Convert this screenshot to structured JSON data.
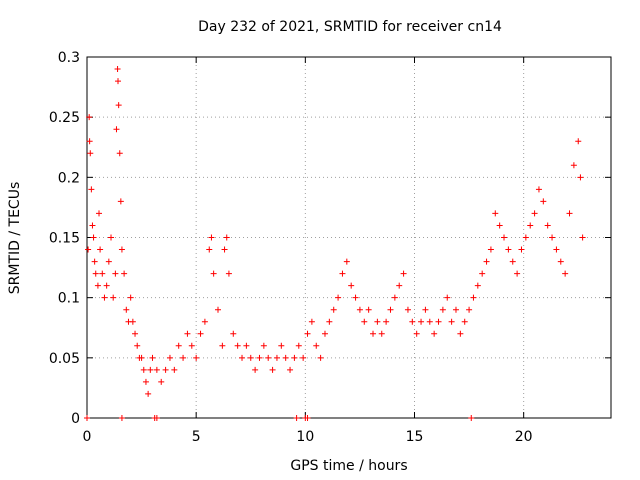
{
  "chart_data": {
    "type": "scatter",
    "title": "Day 232 of 2021, SRMTID for receiver cn14",
    "xlabel": "GPS time / hours",
    "ylabel": "SRMTID / TECUs",
    "xlim": [
      0,
      24
    ],
    "ylim": [
      0,
      0.3
    ],
    "xticks": [
      0,
      5,
      10,
      15,
      20
    ],
    "xtick_labels": [
      "0",
      "5",
      "10",
      "15",
      "20"
    ],
    "yticks": [
      0,
      0.05,
      0.1,
      0.15,
      0.2,
      0.25,
      0.3
    ],
    "ytick_labels": [
      "0",
      "0.05",
      "0.1",
      "0.15",
      "0.2",
      "0.25",
      "0.3"
    ],
    "grid": true,
    "marker": "+",
    "color": "#ff0000",
    "series": [
      {
        "name": "SRMTID",
        "points": [
          [
            0.05,
            0.14
          ],
          [
            0.1,
            0.25
          ],
          [
            0.12,
            0.23
          ],
          [
            0.15,
            0.22
          ],
          [
            0.2,
            0.19
          ],
          [
            0.25,
            0.16
          ],
          [
            0.3,
            0.15
          ],
          [
            0.35,
            0.13
          ],
          [
            0.4,
            0.12
          ],
          [
            0.5,
            0.11
          ],
          [
            0.55,
            0.17
          ],
          [
            0.6,
            0.14
          ],
          [
            0.7,
            0.12
          ],
          [
            0.8,
            0.1
          ],
          [
            0.9,
            0.11
          ],
          [
            1.0,
            0.13
          ],
          [
            1.1,
            0.15
          ],
          [
            1.2,
            0.1
          ],
          [
            1.3,
            0.12
          ],
          [
            1.35,
            0.24
          ],
          [
            1.4,
            0.29
          ],
          [
            1.42,
            0.28
          ],
          [
            1.45,
            0.26
          ],
          [
            1.5,
            0.22
          ],
          [
            1.55,
            0.18
          ],
          [
            1.6,
            0.14
          ],
          [
            1.7,
            0.12
          ],
          [
            1.8,
            0.09
          ],
          [
            1.9,
            0.08
          ],
          [
            2.0,
            0.1
          ],
          [
            2.1,
            0.08
          ],
          [
            2.2,
            0.07
          ],
          [
            2.3,
            0.06
          ],
          [
            2.4,
            0.05
          ],
          [
            2.5,
            0.05
          ],
          [
            2.6,
            0.04
          ],
          [
            2.7,
            0.03
          ],
          [
            2.8,
            0.02
          ],
          [
            2.9,
            0.04
          ],
          [
            3.0,
            0.05
          ],
          [
            3.2,
            0.04
          ],
          [
            3.4,
            0.03
          ],
          [
            3.6,
            0.04
          ],
          [
            3.8,
            0.05
          ],
          [
            4.0,
            0.04
          ],
          [
            4.2,
            0.06
          ],
          [
            4.4,
            0.05
          ],
          [
            4.6,
            0.07
          ],
          [
            4.8,
            0.06
          ],
          [
            5.0,
            0.05
          ],
          [
            5.2,
            0.07
          ],
          [
            5.4,
            0.08
          ],
          [
            5.6,
            0.14
          ],
          [
            5.7,
            0.15
          ],
          [
            5.8,
            0.12
          ],
          [
            6.0,
            0.09
          ],
          [
            6.2,
            0.06
          ],
          [
            6.3,
            0.14
          ],
          [
            6.4,
            0.15
          ],
          [
            6.5,
            0.12
          ],
          [
            6.7,
            0.07
          ],
          [
            6.9,
            0.06
          ],
          [
            7.1,
            0.05
          ],
          [
            7.3,
            0.06
          ],
          [
            7.5,
            0.05
          ],
          [
            7.7,
            0.04
          ],
          [
            7.9,
            0.05
          ],
          [
            8.1,
            0.06
          ],
          [
            8.3,
            0.05
          ],
          [
            8.5,
            0.04
          ],
          [
            8.7,
            0.05
          ],
          [
            8.9,
            0.06
          ],
          [
            9.1,
            0.05
          ],
          [
            9.3,
            0.04
          ],
          [
            9.5,
            0.05
          ],
          [
            9.7,
            0.06
          ],
          [
            9.9,
            0.05
          ],
          [
            10.1,
            0.07
          ],
          [
            10.3,
            0.08
          ],
          [
            10.5,
            0.06
          ],
          [
            10.7,
            0.05
          ],
          [
            10.9,
            0.07
          ],
          [
            11.1,
            0.08
          ],
          [
            11.3,
            0.09
          ],
          [
            11.5,
            0.1
          ],
          [
            11.7,
            0.12
          ],
          [
            11.9,
            0.13
          ],
          [
            12.1,
            0.11
          ],
          [
            12.3,
            0.1
          ],
          [
            12.5,
            0.09
          ],
          [
            12.7,
            0.08
          ],
          [
            12.9,
            0.09
          ],
          [
            13.1,
            0.07
          ],
          [
            13.3,
            0.08
          ],
          [
            13.5,
            0.07
          ],
          [
            13.7,
            0.08
          ],
          [
            13.9,
            0.09
          ],
          [
            14.1,
            0.1
          ],
          [
            14.3,
            0.11
          ],
          [
            14.5,
            0.12
          ],
          [
            14.7,
            0.09
          ],
          [
            14.9,
            0.08
          ],
          [
            15.1,
            0.07
          ],
          [
            15.3,
            0.08
          ],
          [
            15.5,
            0.09
          ],
          [
            15.7,
            0.08
          ],
          [
            15.9,
            0.07
          ],
          [
            16.1,
            0.08
          ],
          [
            16.3,
            0.09
          ],
          [
            16.5,
            0.1
          ],
          [
            16.7,
            0.08
          ],
          [
            16.9,
            0.09
          ],
          [
            17.1,
            0.07
          ],
          [
            17.3,
            0.08
          ],
          [
            17.5,
            0.09
          ],
          [
            17.7,
            0.1
          ],
          [
            17.9,
            0.11
          ],
          [
            18.1,
            0.12
          ],
          [
            18.3,
            0.13
          ],
          [
            18.5,
            0.14
          ],
          [
            18.7,
            0.17
          ],
          [
            18.9,
            0.16
          ],
          [
            19.1,
            0.15
          ],
          [
            19.3,
            0.14
          ],
          [
            19.5,
            0.13
          ],
          [
            19.7,
            0.12
          ],
          [
            19.9,
            0.14
          ],
          [
            20.1,
            0.15
          ],
          [
            20.3,
            0.16
          ],
          [
            20.5,
            0.17
          ],
          [
            20.7,
            0.19
          ],
          [
            20.9,
            0.18
          ],
          [
            21.1,
            0.16
          ],
          [
            21.3,
            0.15
          ],
          [
            21.5,
            0.14
          ],
          [
            21.7,
            0.13
          ],
          [
            21.9,
            0.12
          ],
          [
            22.1,
            0.17
          ],
          [
            22.3,
            0.21
          ],
          [
            22.5,
            0.23
          ],
          [
            22.6,
            0.2
          ],
          [
            22.7,
            0.15
          ],
          [
            0.0,
            0.0
          ],
          [
            1.6,
            0.0
          ],
          [
            3.1,
            0.0
          ],
          [
            3.2,
            0.0
          ],
          [
            9.6,
            0.0
          ],
          [
            10.0,
            0.0
          ],
          [
            10.1,
            0.0
          ],
          [
            17.6,
            0.0
          ]
        ]
      }
    ]
  }
}
